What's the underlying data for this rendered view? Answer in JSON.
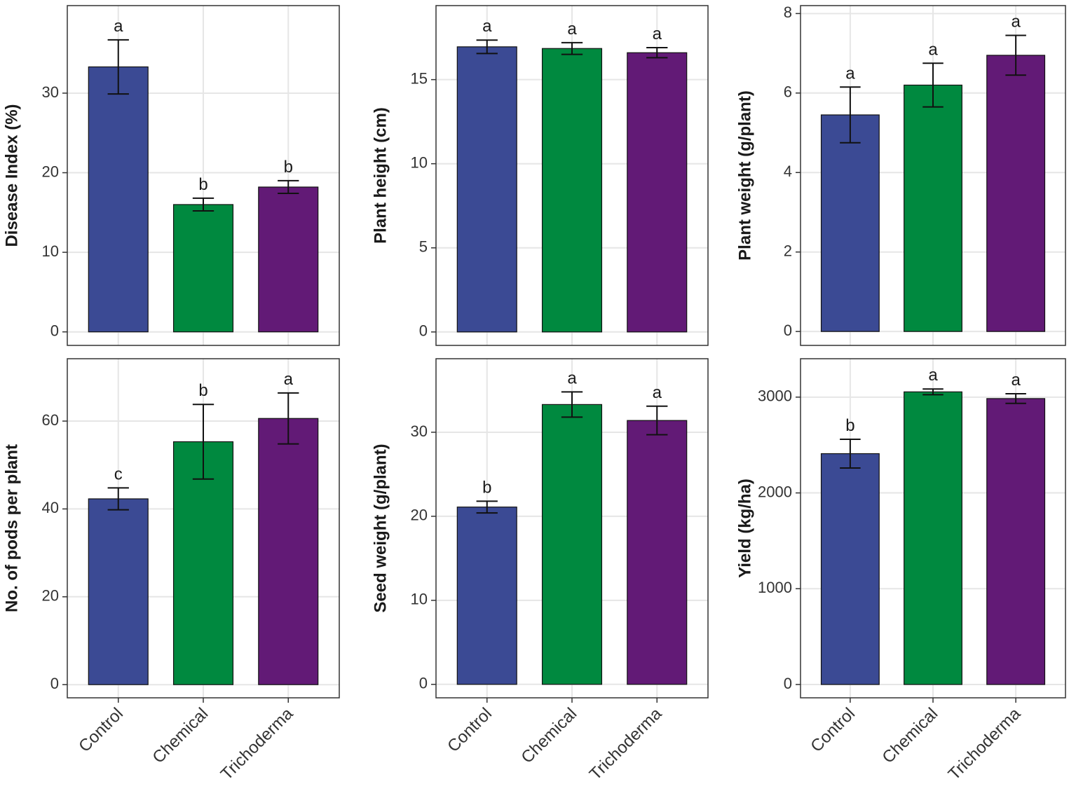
{
  "chart_data": [
    {
      "type": "bar",
      "ylabel": "Disease Index (%)",
      "values": [
        33.3,
        16.0,
        18.2
      ],
      "errors": [
        3.4,
        0.8,
        0.8
      ],
      "letters": [
        "a",
        "b",
        "b"
      ],
      "colors": [
        "#3b4a94",
        "#00893f",
        "#621a76"
      ],
      "ylim": [
        -1.7,
        41
      ],
      "yticks": [
        0,
        10,
        20,
        30
      ],
      "grid": true
    },
    {
      "type": "bar",
      "ylabel": "Plant height (cm)",
      "values": [
        16.95,
        16.85,
        16.6
      ],
      "errors": [
        0.4,
        0.35,
        0.3
      ],
      "letters": [
        "a",
        "a",
        "a"
      ],
      "colors": [
        "#3b4a94",
        "#00893f",
        "#621a76"
      ],
      "ylim": [
        -0.8,
        19.4
      ],
      "yticks": [
        0,
        5,
        10,
        15
      ],
      "grid": true
    },
    {
      "type": "bar",
      "ylabel": "Plant weight (g/plant)",
      "values": [
        5.45,
        6.2,
        6.95
      ],
      "errors": [
        0.7,
        0.55,
        0.5
      ],
      "letters": [
        "a",
        "a",
        "a"
      ],
      "colors": [
        "#3b4a94",
        "#00893f",
        "#621a76"
      ],
      "ylim": [
        -0.35,
        8.2
      ],
      "yticks": [
        0,
        2,
        4,
        6,
        8
      ],
      "grid": true
    },
    {
      "type": "bar",
      "ylabel": "No. of pods per plant",
      "categories": [
        "Control",
        "Chemical",
        "Trichoderma"
      ],
      "values": [
        42.3,
        55.3,
        60.6
      ],
      "errors": [
        2.5,
        8.5,
        5.8
      ],
      "letters": [
        "c",
        "b",
        "a"
      ],
      "colors": [
        "#3b4a94",
        "#00893f",
        "#621a76"
      ],
      "ylim": [
        -3,
        74.2
      ],
      "yticks": [
        0,
        20,
        40,
        60
      ],
      "grid": true
    },
    {
      "type": "bar",
      "ylabel": "Seed weight (g/plant)",
      "categories": [
        "Control",
        "Chemical",
        "Trichoderma"
      ],
      "values": [
        21.1,
        33.3,
        31.4
      ],
      "errors": [
        0.7,
        1.5,
        1.7
      ],
      "letters": [
        "b",
        "a",
        "a"
      ],
      "colors": [
        "#3b4a94",
        "#00893f",
        "#621a76"
      ],
      "ylim": [
        -1.6,
        38.75
      ],
      "yticks": [
        0,
        10,
        20,
        30
      ],
      "grid": true
    },
    {
      "type": "bar",
      "ylabel": "Yield (kg/ha)",
      "categories": [
        "Control",
        "Chemical",
        "Trichoderma"
      ],
      "values": [
        2410,
        3055,
        2985
      ],
      "errors": [
        150,
        30,
        50
      ],
      "letters": [
        "b",
        "a",
        "a"
      ],
      "colors": [
        "#3b4a94",
        "#00893f",
        "#621a76"
      ],
      "ylim": [
        -139,
        3401
      ],
      "yticks": [
        0,
        1000,
        2000,
        3000
      ],
      "grid": true
    }
  ]
}
